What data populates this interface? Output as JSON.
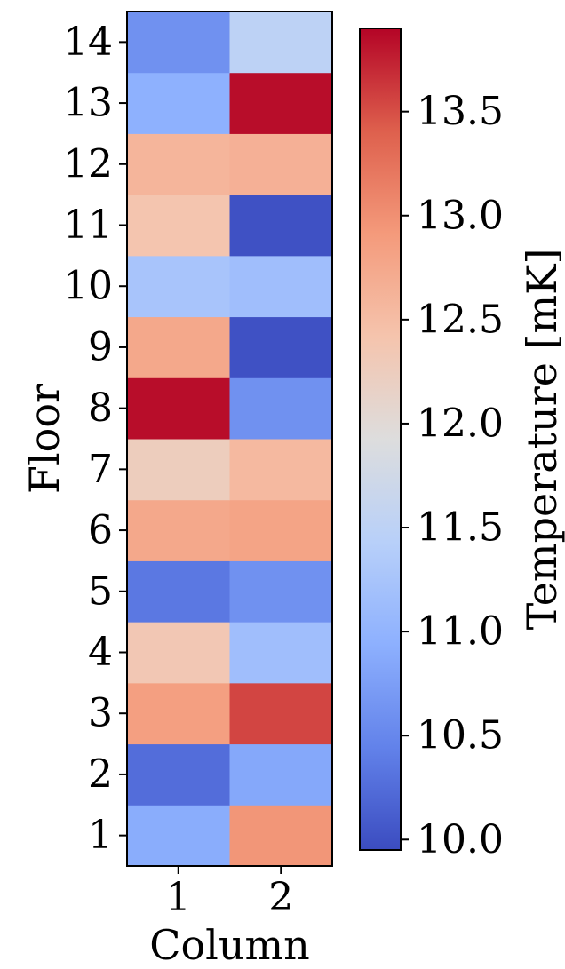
{
  "chart_data": {
    "type": "heatmap",
    "xlabel": "Column",
    "ylabel": "Floor",
    "x_categories": [
      "1",
      "2"
    ],
    "y_categories": [
      "1",
      "2",
      "3",
      "4",
      "5",
      "6",
      "7",
      "8",
      "9",
      "10",
      "11",
      "12",
      "13",
      "14"
    ],
    "values": [
      [
        10.9,
        12.95
      ],
      [
        10.25,
        10.85
      ],
      [
        12.85,
        13.55
      ],
      [
        12.35,
        11.15
      ],
      [
        10.35,
        10.6
      ],
      [
        12.75,
        12.8
      ],
      [
        12.25,
        12.55
      ],
      [
        13.85,
        10.6
      ],
      [
        12.75,
        10.0
      ],
      [
        11.25,
        11.15
      ],
      [
        12.4,
        10.0
      ],
      [
        12.6,
        12.65
      ],
      [
        10.95,
        13.85
      ],
      [
        10.6,
        11.5
      ]
    ],
    "colorbar": {
      "label": "Temperature [mK]",
      "vmin": 9.95,
      "vmax": 13.9,
      "ticks": [
        "10.0",
        "10.5",
        "11.0",
        "11.5",
        "12.0",
        "12.5",
        "13.0",
        "13.5"
      ],
      "colormap": "coolwarm"
    }
  }
}
